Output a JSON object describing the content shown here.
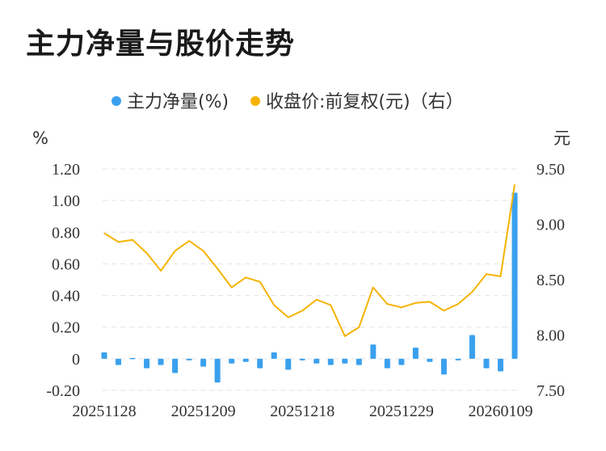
{
  "title": "主力净量与股价走势",
  "chart_data": {
    "type": "bar+line",
    "legend": [
      {
        "name": "主力净量(%)",
        "color": "#3aa0ee"
      },
      {
        "name": "收盘价:前复权(元)（右）",
        "color": "#f5b300"
      }
    ],
    "left_unit": "%",
    "right_unit": "元",
    "left_ylim": [
      -0.2,
      1.2
    ],
    "right_ylim": [
      7.5,
      9.5
    ],
    "left_ticks": [
      "1.20",
      "1.00",
      "0.80",
      "0.60",
      "0.40",
      "0.20",
      "0",
      "-0.20"
    ],
    "right_ticks": [
      "9.50",
      "9.00",
      "8.50",
      "8.00",
      "7.50"
    ],
    "x_tick_labels": [
      "20251128",
      "20251209",
      "20251218",
      "20251229",
      "20260109"
    ],
    "x_tick_indices": [
      0,
      7,
      14,
      21,
      28
    ],
    "grid": "horizontal-dashed",
    "series": [
      {
        "name": "主力净量(%)",
        "type": "bar",
        "axis": "left",
        "values": [
          0.04,
          -0.04,
          0.005,
          -0.06,
          -0.04,
          -0.09,
          -0.01,
          -0.05,
          -0.15,
          -0.03,
          -0.02,
          -0.06,
          0.04,
          -0.07,
          -0.01,
          -0.03,
          -0.04,
          -0.03,
          -0.04,
          0.09,
          -0.06,
          -0.04,
          0.07,
          -0.02,
          -0.1,
          -0.01,
          0.15,
          -0.06,
          -0.08,
          1.05
        ]
      },
      {
        "name": "收盘价:前复权(元)（右）",
        "type": "line",
        "axis": "right",
        "values": [
          8.92,
          8.84,
          8.86,
          8.74,
          8.58,
          8.76,
          8.85,
          8.76,
          8.6,
          8.43,
          8.52,
          8.48,
          8.27,
          8.16,
          8.22,
          8.32,
          8.27,
          7.99,
          8.07,
          8.43,
          8.28,
          8.25,
          8.29,
          8.3,
          8.22,
          8.28,
          8.39,
          8.55,
          8.53,
          9.36
        ]
      }
    ]
  }
}
